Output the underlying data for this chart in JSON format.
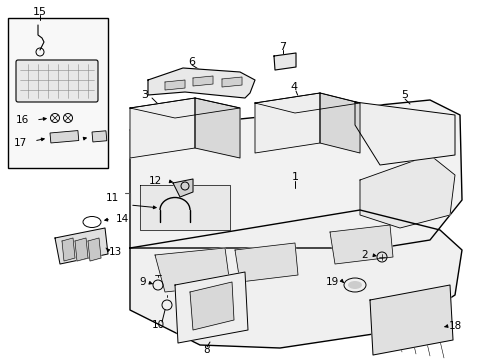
{
  "bg_color": "#ffffff",
  "line_color": "#000000",
  "box_fill": "#f0f0f0",
  "part_fill": "#e8e8e8",
  "dark_fill": "#d0d0d0"
}
